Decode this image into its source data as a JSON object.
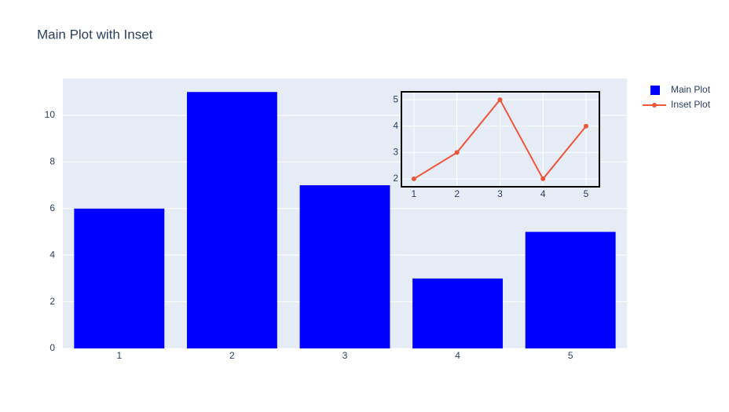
{
  "chart_data": [
    {
      "type": "bar",
      "title": "Main Plot with Inset",
      "x": [
        1,
        2,
        3,
        4,
        5
      ],
      "series": [
        {
          "name": "Main Plot",
          "color": "#0000ff",
          "values": [
            6,
            11,
            7,
            3,
            5
          ]
        }
      ],
      "xlim": [
        0.5,
        5.5
      ],
      "ylim": [
        0,
        11.58
      ],
      "xticks": [
        1,
        2,
        3,
        4,
        5
      ],
      "yticks": [
        0,
        2,
        4,
        6,
        8,
        10
      ],
      "grid": true,
      "legend": "right"
    },
    {
      "type": "line",
      "x": [
        1,
        2,
        3,
        4,
        5
      ],
      "series": [
        {
          "name": "Inset Plot",
          "color": "#EF553B",
          "values": [
            2,
            3,
            5,
            2,
            4
          ]
        }
      ],
      "xlim": [
        0.71,
        5.31
      ],
      "ylim": [
        1.7,
        5.3
      ],
      "xticks": [
        1,
        2,
        3,
        4,
        5
      ],
      "yticks": [
        2,
        3,
        4,
        5
      ],
      "grid": true
    }
  ]
}
